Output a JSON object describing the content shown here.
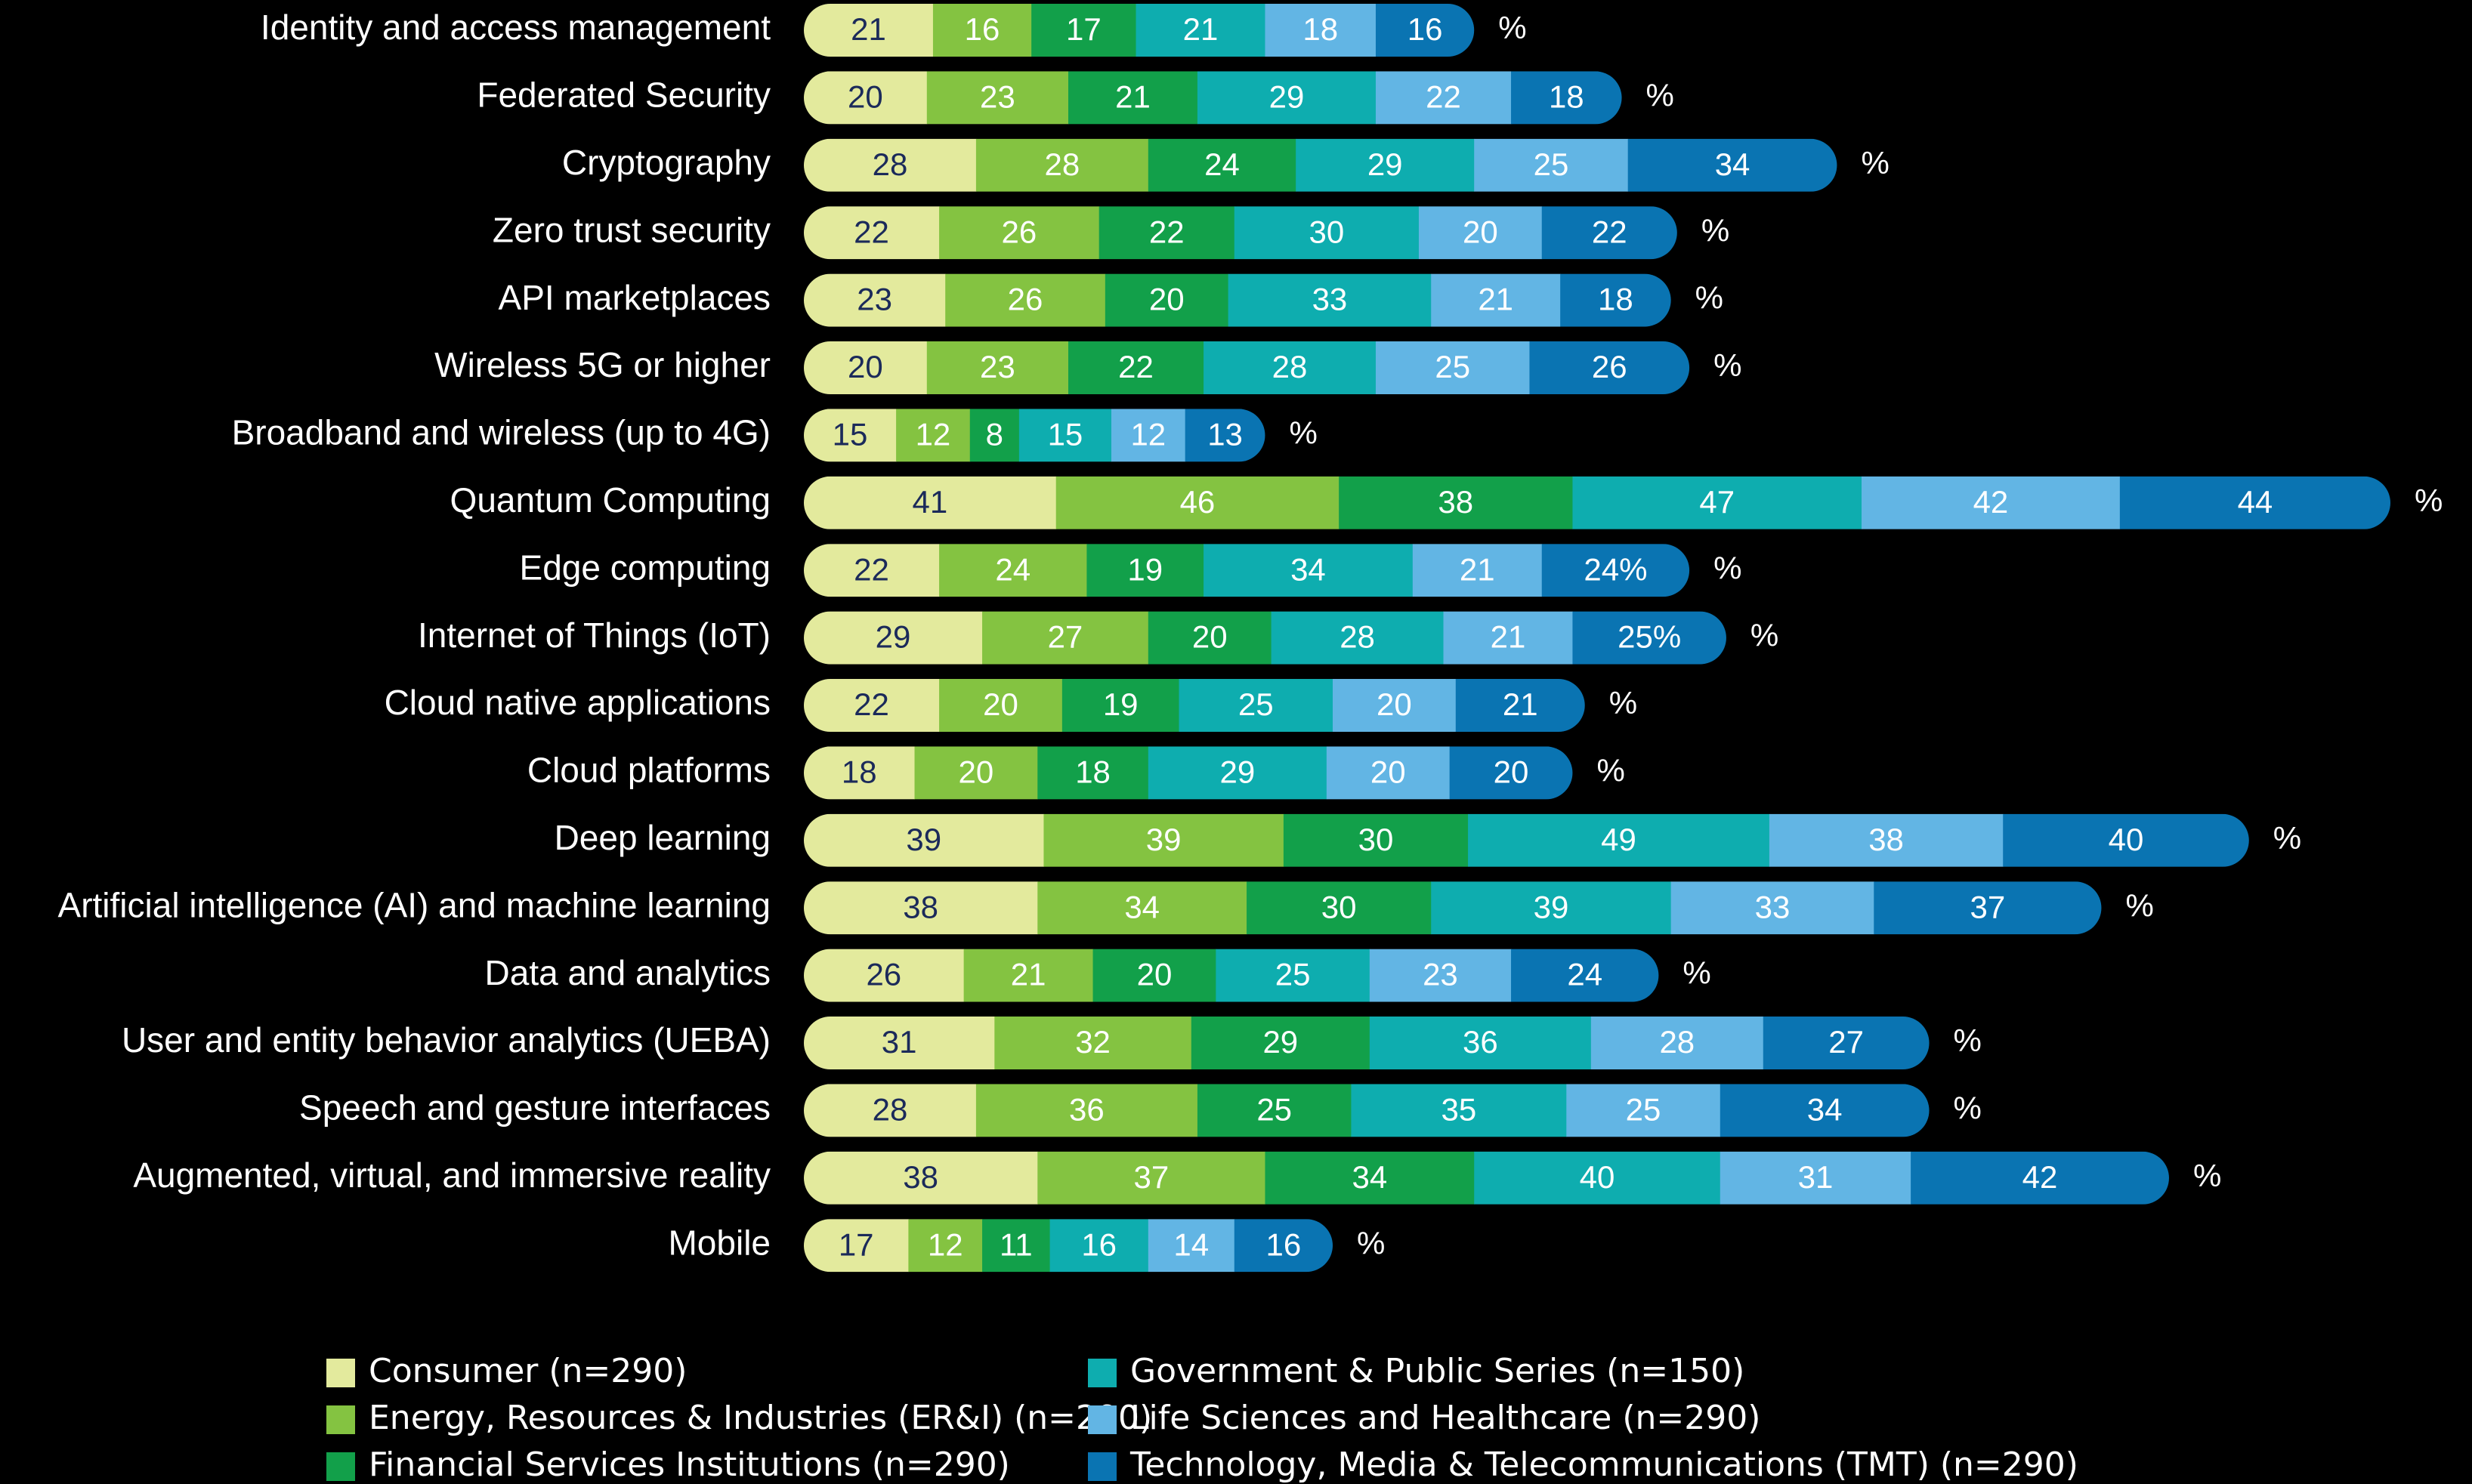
{
  "chart_data": {
    "type": "stacked-bar",
    "orientation": "horizontal",
    "row_suffix": "%",
    "categories": [
      "Identity and access management",
      "Federated Security",
      "Cryptography",
      "Zero trust security",
      "API marketplaces",
      "Wireless 5G or higher",
      "Broadband and wireless (up to 4G)",
      "Quantum Computing",
      "Edge computing",
      "Internet of Things (IoT)",
      "Cloud native applications",
      "Cloud platforms",
      "Deep learning",
      "Artificial intelligence (AI) and machine learning",
      "Data and analytics",
      "User and entity behavior analytics (UEBA)",
      "Speech and gesture interfaces",
      "Augmented, virtual, and immersive reality",
      "Mobile"
    ],
    "series": [
      {
        "name": "Consumer (n=290)",
        "color": "#e3ea9d",
        "label_color": "#1b2a5a",
        "values": [
          21,
          20,
          28,
          22,
          23,
          20,
          15,
          41,
          22,
          29,
          22,
          18,
          39,
          38,
          26,
          31,
          28,
          38,
          17
        ]
      },
      {
        "name": "Energy, Resources & Industries (ER&I) (n=290)",
        "color": "#84c341",
        "label_color": "#ffffff",
        "values": [
          16,
          23,
          28,
          26,
          26,
          23,
          12,
          46,
          24,
          27,
          20,
          20,
          39,
          34,
          21,
          32,
          36,
          37,
          12
        ]
      },
      {
        "name": "Financial Services Institutions (n=290)",
        "color": "#12a04a",
        "label_color": "#ffffff",
        "values": [
          17,
          21,
          24,
          22,
          20,
          22,
          8,
          38,
          19,
          20,
          19,
          18,
          30,
          30,
          20,
          29,
          25,
          34,
          11
        ]
      },
      {
        "name": "Government & Public Series (n=150)",
        "color": "#0eadaf",
        "label_color": "#ffffff",
        "values": [
          21,
          29,
          29,
          30,
          33,
          28,
          15,
          47,
          34,
          28,
          25,
          29,
          49,
          39,
          25,
          36,
          35,
          40,
          16
        ]
      },
      {
        "name": "Life Sciences and Healthcare (n=290)",
        "color": "#62b5e4",
        "label_color": "#ffffff",
        "values": [
          18,
          22,
          25,
          20,
          21,
          25,
          12,
          42,
          21,
          21,
          20,
          20,
          38,
          33,
          23,
          28,
          25,
          31,
          14
        ]
      },
      {
        "name": "Technology, Media & Telecommunications (TMT) (n=290)",
        "color": "#0a74b2",
        "label_color": "#ffffff",
        "values": [
          16,
          18,
          34,
          22,
          18,
          26,
          13,
          44,
          24,
          25,
          21,
          20,
          40,
          37,
          24,
          27,
          34,
          42,
          16
        ],
        "value_labels": [
          "16",
          "18",
          "34",
          "22",
          "18",
          "26",
          "13",
          "44",
          "24%",
          "25%",
          "21",
          "20",
          "40",
          "37",
          "24",
          "27",
          "34",
          "42",
          "16"
        ]
      }
    ]
  }
}
